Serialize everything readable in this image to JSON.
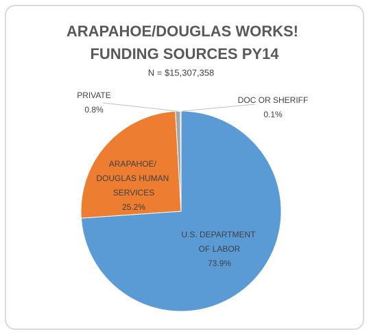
{
  "chart_data": {
    "type": "pie",
    "title": "ARAPAHOE/DOUGLAS WORKS! FUNDING SOURCES PY14",
    "subtitle": "N = $15,307,358",
    "categories": [
      "U.S. DEPARTMENT OF LABOR",
      "ARAPAHOE/ DOUGLAS HUMAN SERVICES",
      "PRIVATE",
      "DOC OR SHERIFF"
    ],
    "values": [
      73.9,
      25.2,
      0.8,
      0.1
    ],
    "value_labels": [
      "73.9%",
      "25.2%",
      "0.8%",
      "0.1%"
    ],
    "colors": [
      "#5b9bd5",
      "#ed7d31",
      "#a5a5a5",
      "#ffc000"
    ]
  }
}
